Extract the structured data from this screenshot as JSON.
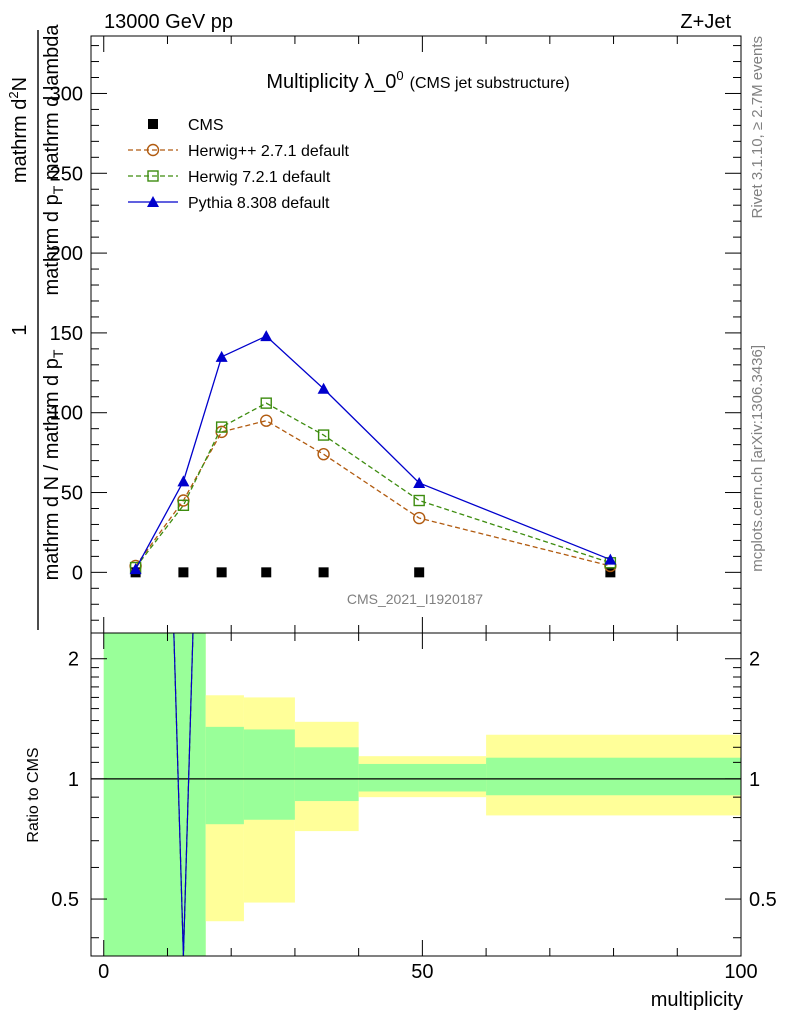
{
  "header": {
    "left_label": "13000 GeV pp",
    "right_label": "Z+Jet"
  },
  "side_labels": {
    "rivet": "Rivet 3.1.10, ≥ 2.7M events",
    "mcplots": "mcplots.cern.ch [arXiv:1306.3436]"
  },
  "watermark": "CMS_2021_I1920187",
  "chart_data": [
    {
      "type": "line",
      "title_main": "Multiplicity λ_0",
      "title_sup": "0",
      "title_paren": "(CMS jet substructure)",
      "ylabel_numerator": "1",
      "ylabel_denominator": "mathrm d N / mathrm d p",
      "ylabel_denominator_sub": "T",
      "ylabel_top": "mathrm d",
      "ylabel_top_sup": "2",
      "ylabel_top_rest": "N",
      "ylabel_bottom": "mathrm d p",
      "ylabel_bottom_sub": "T",
      "ylabel_bottom_rest": " mathrm d lambda",
      "xlim": [
        -2,
        100
      ],
      "ylim": [
        -38,
        336
      ],
      "yticks": [
        0,
        50,
        100,
        150,
        200,
        250,
        300
      ],
      "ytick_labels": [
        "0",
        "50",
        "100",
        "150",
        "200",
        "250",
        "300"
      ],
      "legend_position": "top-left",
      "series": [
        {
          "name": "CMS",
          "marker": "filled-square",
          "color": "#000000",
          "x": [
            5,
            12.5,
            18.5,
            25.5,
            34.5,
            49.5,
            79.5
          ],
          "y": [
            0,
            0,
            0,
            0,
            0,
            0,
            0
          ]
        },
        {
          "name": "Herwig++ 2.7.1 default",
          "marker": "open-circle",
          "line": "dashed",
          "color": "#b15b10",
          "x": [
            5,
            12.5,
            18.5,
            25.5,
            34.5,
            49.5,
            79.5
          ],
          "y": [
            4,
            45,
            88,
            95,
            74,
            34,
            4
          ]
        },
        {
          "name": "Herwig 7.2.1 default",
          "marker": "open-square",
          "line": "dashed",
          "color": "#3d8c0f",
          "x": [
            5,
            12.5,
            18.5,
            25.5,
            34.5,
            49.5,
            79.5
          ],
          "y": [
            3,
            42,
            91,
            106,
            86,
            45,
            6
          ]
        },
        {
          "name": "Pythia 8.308 default",
          "marker": "filled-triangle",
          "line": "solid",
          "color": "#0000cc",
          "x": [
            5,
            12.5,
            18.5,
            25.5,
            34.5,
            49.5,
            79.5
          ],
          "y": [
            2,
            57,
            135,
            148,
            115,
            56,
            8
          ]
        }
      ]
    },
    {
      "type": "area",
      "ylabel": "Ratio to CMS",
      "xlabel": "multiplicity",
      "xlim": [
        -2,
        100
      ],
      "ylim": [
        0.36,
        2.32
      ],
      "y_scale": "log",
      "xticks": [
        0,
        50,
        100
      ],
      "xtick_labels": [
        "0",
        "50",
        "100"
      ],
      "yticks": [
        0.5,
        1,
        2
      ],
      "ytick_labels": [
        "0.5",
        "1",
        "2"
      ],
      "reference_line": 1,
      "uncertainty_bands": {
        "bin_edges": [
          0,
          16,
          22,
          30,
          40,
          60,
          100
        ],
        "yellow_low": [
          0.3,
          0.44,
          0.49,
          0.74,
          0.9,
          0.81
        ],
        "yellow_high": [
          3,
          1.62,
          1.6,
          1.39,
          1.14,
          1.29
        ],
        "green_low": [
          0.3,
          0.77,
          0.79,
          0.88,
          0.93,
          0.91
        ],
        "green_high": [
          3,
          1.35,
          1.33,
          1.2,
          1.09,
          1.13
        ],
        "yellow_color": "#ffff99",
        "green_color": "#99ff99"
      },
      "series": [
        {
          "name": "Herwig++ 2.7.1 default",
          "color": "#b15b10",
          "line": "dashed",
          "x": [
            11,
            12.5,
            14
          ],
          "y": [
            2.32,
            0.36,
            2.32
          ]
        },
        {
          "name": "Herwig 7.2.1 default",
          "color": "#3d8c0f",
          "line": "dashed",
          "x": [
            11,
            12.5,
            14
          ],
          "y": [
            2.32,
            0.36,
            2.32
          ]
        },
        {
          "name": "Pythia 8.308 default",
          "color": "#0000cc",
          "line": "solid",
          "x": [
            11,
            12.5,
            14
          ],
          "y": [
            2.32,
            0.36,
            2.32
          ]
        }
      ]
    }
  ]
}
